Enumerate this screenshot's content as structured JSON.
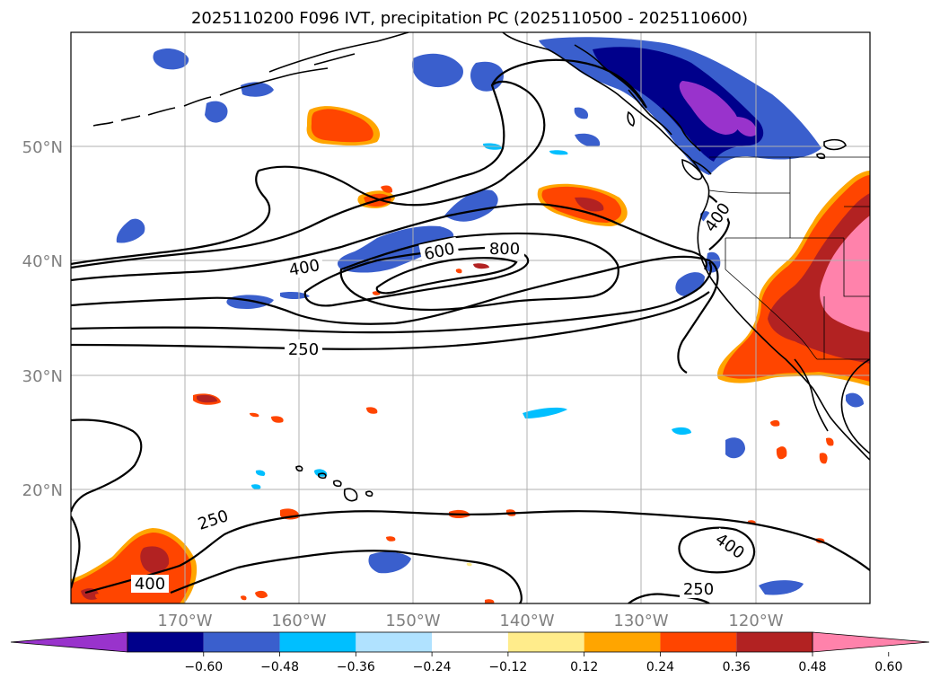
{
  "title": "2025110200 F096 IVT, precipitation PC (2025110500 - 2025110600)",
  "lat_labels": [
    "50°N",
    "40°N",
    "30°N",
    "20°N"
  ],
  "lon_labels": [
    "170°W",
    "160°W",
    "150°W",
    "140°W",
    "130°W",
    "120°W"
  ],
  "colorbar": {
    "ticks": [
      "−0.60",
      "−0.48",
      "−0.36",
      "−0.24",
      "−0.12",
      "0.12",
      "0.24",
      "0.36",
      "0.48",
      "0.60"
    ],
    "colors": [
      "#9933cc",
      "#00008b",
      "#3a5fcd",
      "#00bfff",
      "#b0e2ff",
      "#ffffff",
      "#ffec8b",
      "#ffa500",
      "#ff4500",
      "#b22222",
      "#ff82ab"
    ]
  },
  "contour_labels": {
    "c400_w": "400",
    "c600": "600",
    "c800": "800",
    "c250_mid": "250",
    "c250_sw": "250",
    "c400_sw": "400",
    "c400_se": "400",
    "c250_se": "250",
    "c400_coast": "400"
  }
}
